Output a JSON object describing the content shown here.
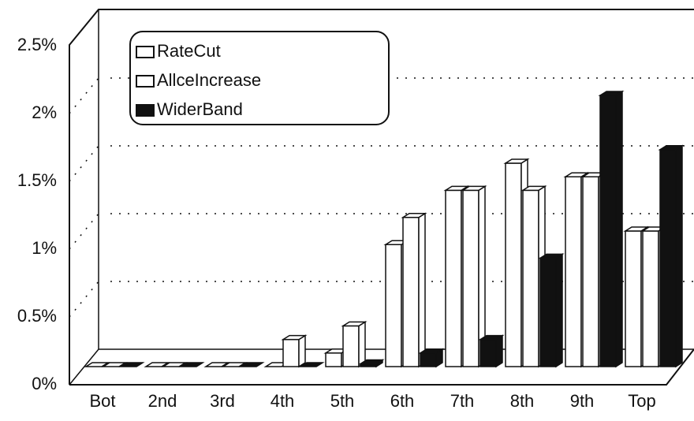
{
  "chart_data": {
    "type": "bar3d",
    "categories": [
      "Bot",
      "2nd",
      "3rd",
      "4th",
      "5th",
      "6th",
      "7th",
      "8th",
      "9th",
      "Top"
    ],
    "series": [
      {
        "name": "RateCut",
        "color": "#ffffff",
        "values": [
          0,
          0,
          0,
          0,
          0.1,
          0.9,
          1.3,
          1.5,
          1.4,
          1.0
        ]
      },
      {
        "name": "AllceIncrease",
        "color": "#ffffff",
        "values": [
          0,
          0,
          0,
          0.2,
          0.3,
          1.1,
          1.3,
          1.3,
          1.4,
          1.0
        ]
      },
      {
        "name": "WiderBand",
        "color": "#111111",
        "values": [
          0,
          0,
          0,
          0,
          0.02,
          0.1,
          0.2,
          0.8,
          2.0,
          1.6
        ]
      }
    ],
    "ylim": [
      0,
      2.5
    ],
    "yticks": [
      {
        "value": 0,
        "label": "0%"
      },
      {
        "value": 0.5,
        "label": "0.5%"
      },
      {
        "value": 1,
        "label": "1%"
      },
      {
        "value": 1.5,
        "label": "1.5%"
      },
      {
        "value": 2,
        "label": "2%"
      },
      {
        "value": 2.5,
        "label": "2.5%"
      }
    ],
    "grid": true,
    "legend": "top-left"
  }
}
